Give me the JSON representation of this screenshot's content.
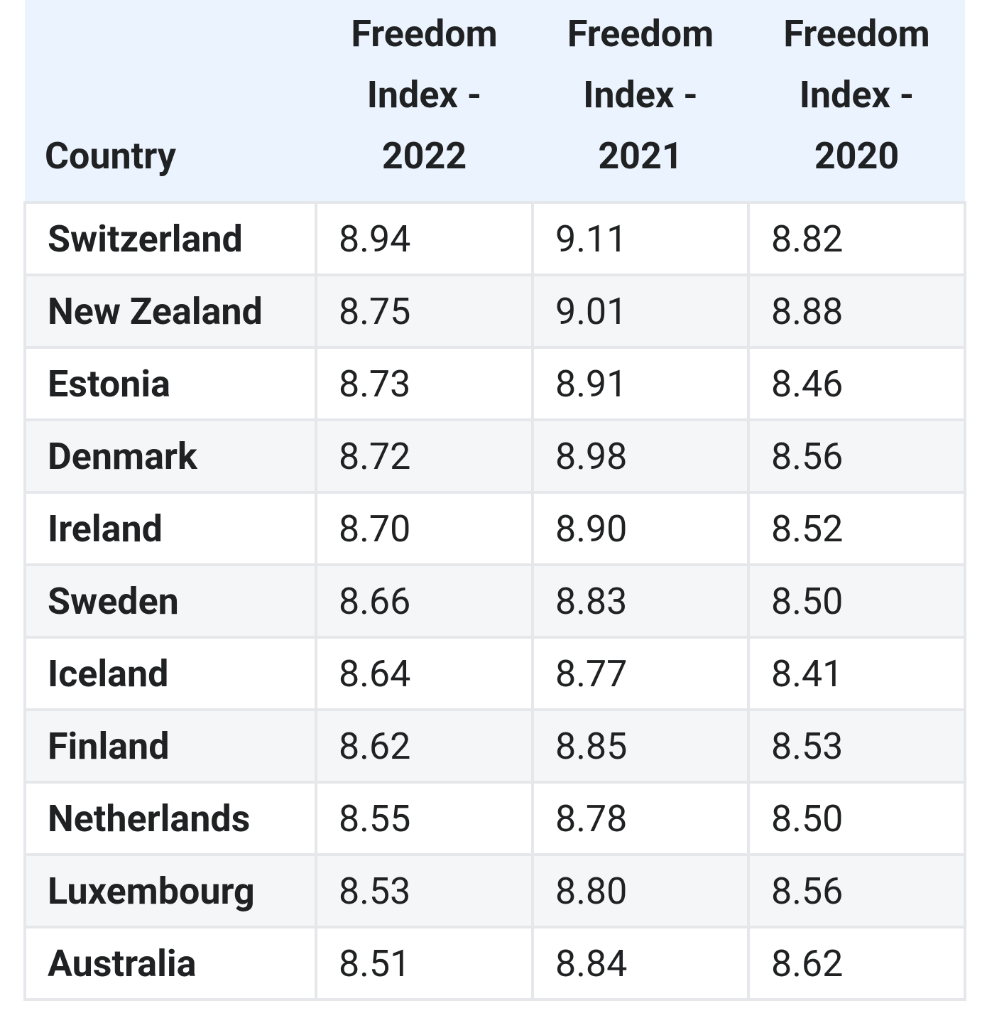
{
  "table": {
    "header": [
      "Country",
      "Freedom Index - 2022",
      "Freedom Index - 2021",
      "Freedom Index - 2020"
    ],
    "rows": [
      [
        "Switzerland",
        "8.94",
        "9.11",
        "8.82"
      ],
      [
        "New Zealand",
        "8.75",
        "9.01",
        "8.88"
      ],
      [
        "Estonia",
        "8.73",
        "8.91",
        "8.46"
      ],
      [
        "Denmark",
        "8.72",
        "8.98",
        "8.56"
      ],
      [
        "Ireland",
        "8.70",
        "8.90",
        "8.52"
      ],
      [
        "Sweden",
        "8.66",
        "8.83",
        "8.50"
      ],
      [
        "Iceland",
        "8.64",
        "8.77",
        "8.41"
      ],
      [
        "Finland",
        "8.62",
        "8.85",
        "8.53"
      ],
      [
        "Netherlands",
        "8.55",
        "8.78",
        "8.50"
      ],
      [
        "Luxembourg",
        "8.53",
        "8.80",
        "8.56"
      ],
      [
        "Australia",
        "8.51",
        "8.84",
        "8.62"
      ]
    ]
  }
}
